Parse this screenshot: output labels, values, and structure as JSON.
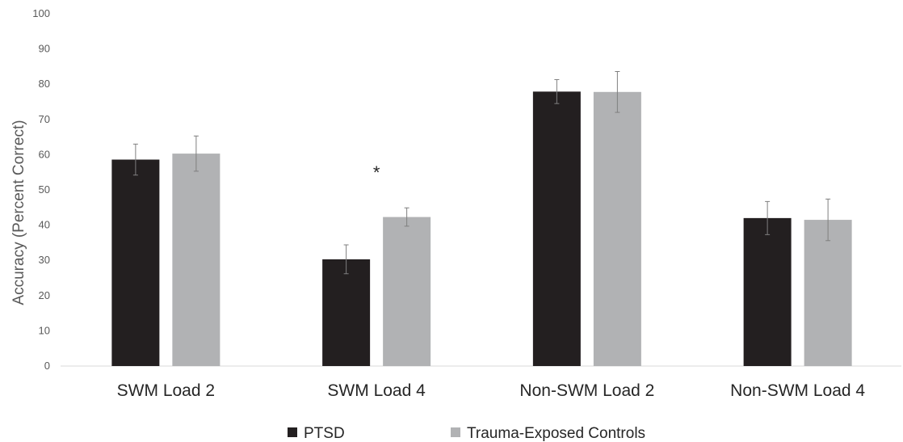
{
  "chart_data": {
    "type": "bar",
    "title": "",
    "xlabel": "",
    "ylabel": "Accuracy (Percent Correct)",
    "ylim": [
      0,
      100
    ],
    "yticks": [
      0,
      10,
      20,
      30,
      40,
      50,
      60,
      70,
      80,
      90,
      100
    ],
    "categories": [
      "SWM Load 2",
      "SWM Load 4",
      "Non-SWM Load 2",
      "Non-SWM Load 4"
    ],
    "series": [
      {
        "name": "PTSD",
        "color": "#231f20",
        "values": [
          58.6,
          30.3,
          77.9,
          42.0
        ],
        "error": [
          4.4,
          4.1,
          3.4,
          4.7
        ]
      },
      {
        "name": "Trauma-Exposed Controls",
        "color": "#b1b2b4",
        "values": [
          60.3,
          42.3,
          77.8,
          41.5
        ],
        "error": [
          5.0,
          2.6,
          5.8,
          5.9
        ]
      }
    ],
    "annotations": [
      {
        "text": "*",
        "category": "SWM Load 4",
        "y": 56
      }
    ],
    "legend_position": "bottom",
    "grid": false
  }
}
